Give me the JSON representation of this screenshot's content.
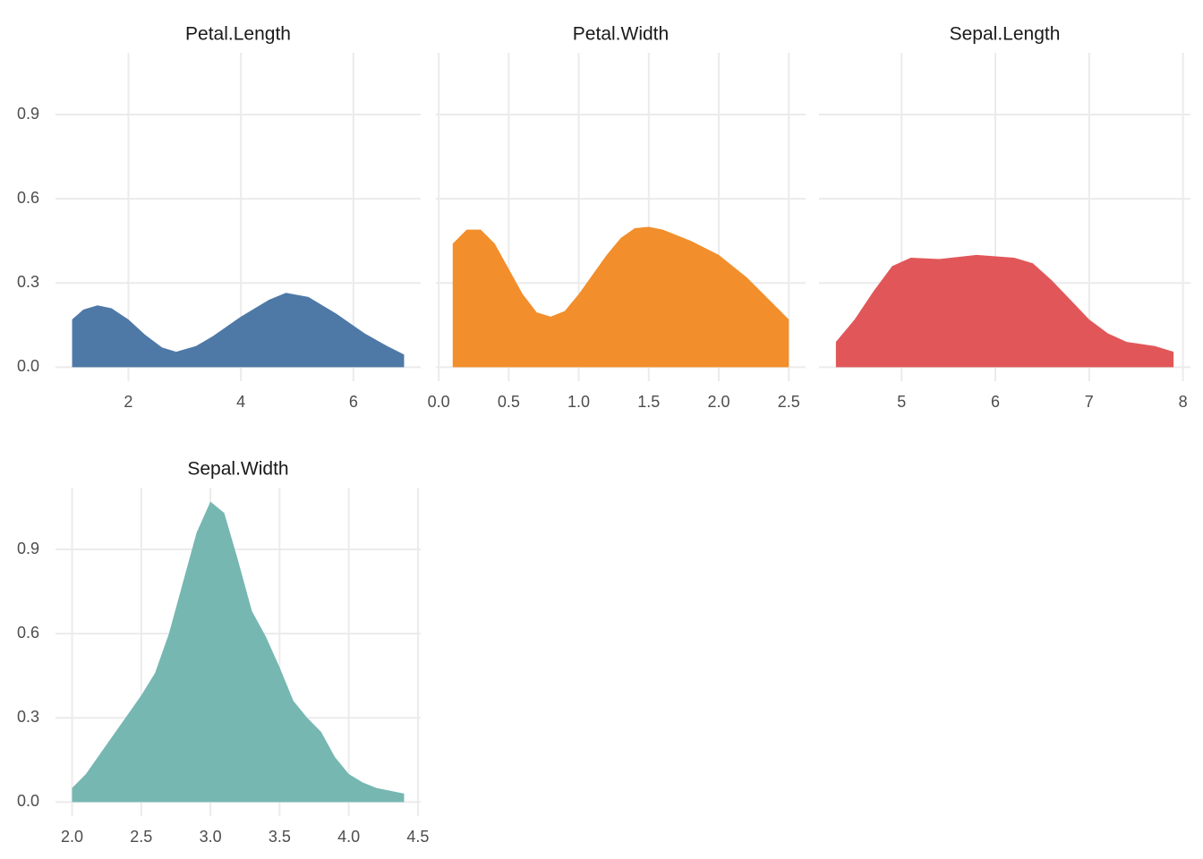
{
  "chart_data": [
    {
      "type": "area",
      "title": "Petal.Length",
      "color": "#4e79a7",
      "x": [
        1,
        1.2,
        1.45,
        1.7,
        2,
        2.3,
        2.6,
        2.85,
        3.2,
        3.5,
        4,
        4.5,
        4.8,
        5.2,
        5.7,
        6.2,
        6.6,
        6.9
      ],
      "values": [
        0.17,
        0.205,
        0.22,
        0.21,
        0.17,
        0.115,
        0.07,
        0.055,
        0.075,
        0.11,
        0.18,
        0.24,
        0.265,
        0.25,
        0.19,
        0.12,
        0.075,
        0.045
      ],
      "xlim": [
        0.705,
        7.195
      ],
      "ylim": [
        -0.05,
        1.12
      ],
      "xticks": [
        2,
        4,
        6
      ],
      "yticks": [
        {
          "value": 0,
          "label": "0.0"
        },
        0.3,
        0.6,
        0.9
      ]
    },
    {
      "type": "area",
      "title": "Petal.Width",
      "color": "#f28e2b",
      "x": [
        0.1,
        0.2,
        0.3,
        0.4,
        0.5,
        0.6,
        0.7,
        0.8,
        0.9,
        1.0,
        1.1,
        1.2,
        1.3,
        1.4,
        1.5,
        1.6,
        1.8,
        2.0,
        2.2,
        2.4,
        2.5
      ],
      "values": [
        0.44,
        0.49,
        0.49,
        0.44,
        0.35,
        0.26,
        0.195,
        0.18,
        0.2,
        0.26,
        0.33,
        0.4,
        0.46,
        0.495,
        0.5,
        0.49,
        0.45,
        0.4,
        0.32,
        0.22,
        0.17
      ],
      "xlim": [
        -0.02,
        2.62
      ],
      "ylim": [
        -0.05,
        1.12
      ],
      "xticks": [
        {
          "value": 0,
          "label": "0.0"
        },
        0.5,
        {
          "value": 1,
          "label": "1.0"
        },
        1.5,
        {
          "value": 2,
          "label": "2.0"
        },
        2.5
      ],
      "yticks": [
        0,
        0.3,
        0.6,
        0.9
      ]
    },
    {
      "type": "area",
      "title": "Sepal.Length",
      "color": "#e15759",
      "x": [
        4.3,
        4.5,
        4.7,
        4.9,
        5.1,
        5.4,
        5.8,
        6.2,
        6.4,
        6.6,
        6.8,
        7.0,
        7.2,
        7.4,
        7.7,
        7.9
      ],
      "values": [
        0.09,
        0.17,
        0.27,
        0.36,
        0.39,
        0.385,
        0.4,
        0.39,
        0.37,
        0.31,
        0.24,
        0.17,
        0.12,
        0.09,
        0.075,
        0.055
      ],
      "xlim": [
        4.12,
        8.08
      ],
      "ylim": [
        -0.05,
        1.12
      ],
      "xticks": [
        5,
        6,
        7,
        8
      ],
      "yticks": [
        0,
        0.3,
        0.6,
        0.9
      ]
    },
    {
      "type": "area",
      "title": "Sepal.Width",
      "color": "#76b7b2",
      "x": [
        2.0,
        2.1,
        2.2,
        2.3,
        2.4,
        2.5,
        2.6,
        2.7,
        2.8,
        2.9,
        3.0,
        3.1,
        3.2,
        3.3,
        3.4,
        3.5,
        3.6,
        3.7,
        3.8,
        3.9,
        4.0,
        4.1,
        4.2,
        4.4
      ],
      "values": [
        0.05,
        0.1,
        0.17,
        0.24,
        0.31,
        0.38,
        0.46,
        0.6,
        0.78,
        0.96,
        1.07,
        1.03,
        0.86,
        0.68,
        0.59,
        0.48,
        0.36,
        0.3,
        0.25,
        0.16,
        0.1,
        0.07,
        0.05,
        0.03
      ],
      "xlim": [
        1.88,
        4.52
      ],
      "ylim": [
        -0.05,
        1.12
      ],
      "xticks": [
        {
          "value": 2,
          "label": "2.0"
        },
        2.5,
        {
          "value": 3,
          "label": "3.0"
        },
        3.5,
        {
          "value": 4,
          "label": "4.0"
        },
        4.5
      ],
      "yticks": [
        {
          "value": 0,
          "label": "0.0"
        },
        0.3,
        0.6,
        0.9
      ]
    }
  ]
}
